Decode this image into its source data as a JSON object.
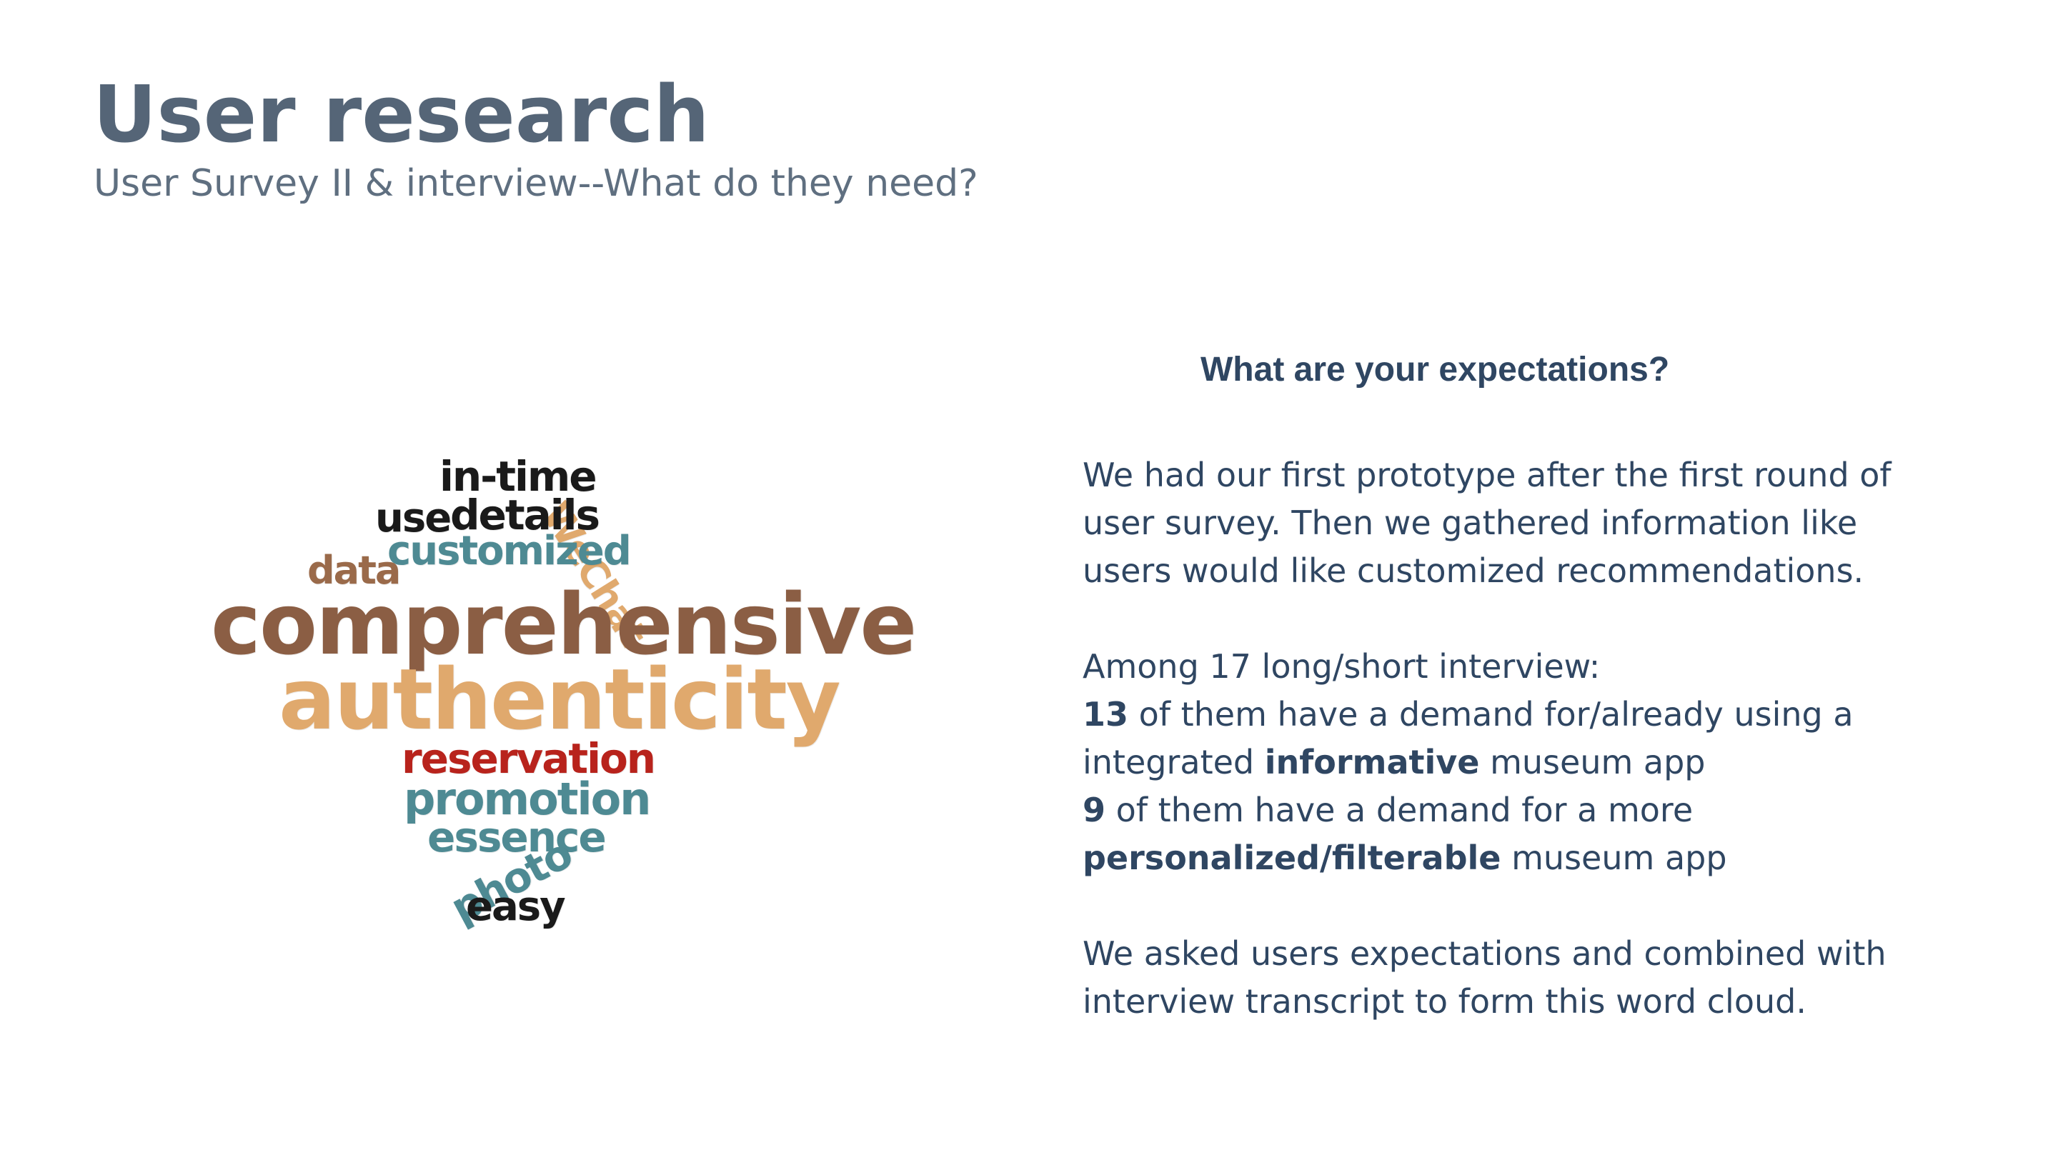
{
  "header": {
    "title": "User research",
    "subtitle": "User Survey II & interview--What do they need?"
  },
  "word_cloud": {
    "words": [
      {
        "text": "in-time",
        "color": "#1a1a1a"
      },
      {
        "text": "WeChat",
        "color": "#e0a96d"
      },
      {
        "text": "use",
        "color": "#1a1a1a"
      },
      {
        "text": "details",
        "color": "#1a1a1a"
      },
      {
        "text": "customized",
        "color": "#4e8a93"
      },
      {
        "text": "data",
        "color": "#9a6a4a"
      },
      {
        "text": "comprehensive",
        "color": "#8b5e44"
      },
      {
        "text": "authenticity",
        "color": "#e0a96d"
      },
      {
        "text": "reservation",
        "color": "#b8231c"
      },
      {
        "text": "promotion",
        "color": "#4e8a93"
      },
      {
        "text": "essence",
        "color": "#4e8a93"
      },
      {
        "text": "photo",
        "color": "#4e8a93"
      },
      {
        "text": "easy",
        "color": "#1a1a1a"
      }
    ]
  },
  "content": {
    "question": "What are your expectations?",
    "para1": {
      "line1": "We had our first prototype after the first round of",
      "line2": "user survey. Then we gathered information like",
      "line3": "users would like customized recommendations."
    },
    "para2": {
      "intro": "Among 17 long/short interview:",
      "stat1_number": "13",
      "stat1_text_a": " of them have a demand for/already using a",
      "stat1_text_b": "integrated ",
      "stat1_bold": "informative",
      "stat1_text_c": " museum app",
      "stat2_number": "9",
      "stat2_text_a": " of them have a demand for a more",
      "stat2_bold": "personalized/filterable",
      "stat2_text_b": " museum app"
    },
    "para3": {
      "line1": "We asked users expectations and combined with",
      "line2": "interview transcript to form this word cloud."
    }
  }
}
